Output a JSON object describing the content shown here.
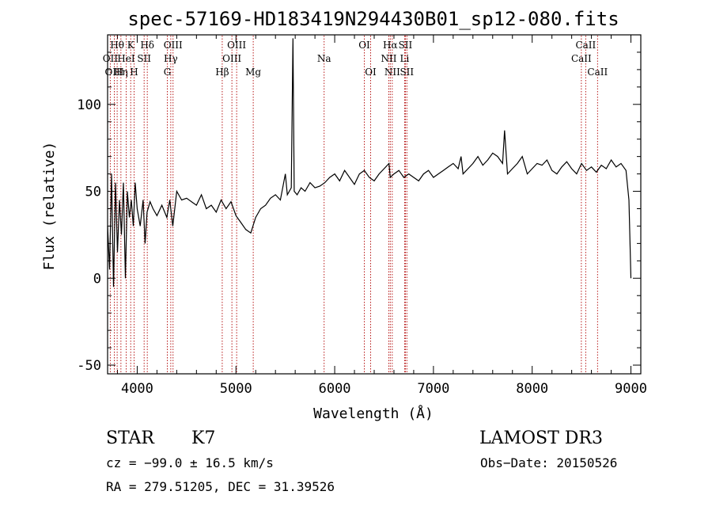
{
  "chart_data": {
    "type": "line",
    "title": "spec-57169-HD183419N294430B01_sp12-080.fits",
    "xlabel": "Wavelength (Å)",
    "ylabel": "Flux (relative)",
    "xlim": [
      3700,
      9100
    ],
    "ylim": [
      -55,
      140
    ],
    "xticks": [
      4000,
      5000,
      6000,
      7000,
      8000,
      9000
    ],
    "yticks": [
      -50,
      0,
      50,
      100
    ],
    "series": [
      {
        "name": "flux",
        "x": [
          3700,
          3720,
          3740,
          3760,
          3780,
          3800,
          3820,
          3840,
          3860,
          3880,
          3900,
          3920,
          3940,
          3960,
          3980,
          4000,
          4030,
          4060,
          4080,
          4100,
          4130,
          4160,
          4200,
          4250,
          4300,
          4330,
          4360,
          4400,
          4450,
          4500,
          4550,
          4600,
          4650,
          4700,
          4750,
          4800,
          4850,
          4900,
          4950,
          5000,
          5050,
          5100,
          5150,
          5200,
          5250,
          5300,
          5350,
          5400,
          5450,
          5500,
          5520,
          5540,
          5560,
          5577,
          5590,
          5620,
          5660,
          5700,
          5750,
          5800,
          5850,
          5900,
          5950,
          6000,
          6050,
          6100,
          6150,
          6200,
          6250,
          6300,
          6350,
          6400,
          6450,
          6500,
          6550,
          6563,
          6600,
          6650,
          6700,
          6750,
          6800,
          6850,
          6900,
          6950,
          7000,
          7050,
          7100,
          7150,
          7200,
          7250,
          7280,
          7300,
          7350,
          7400,
          7450,
          7500,
          7550,
          7600,
          7650,
          7700,
          7720,
          7750,
          7800,
          7850,
          7900,
          7950,
          8000,
          8050,
          8100,
          8150,
          8200,
          8250,
          8300,
          8350,
          8400,
          8450,
          8500,
          8550,
          8600,
          8650,
          8700,
          8750,
          8800,
          8850,
          8900,
          8950,
          8980,
          9000
        ],
        "values": [
          30,
          5,
          60,
          -5,
          55,
          15,
          45,
          25,
          55,
          0,
          50,
          35,
          45,
          30,
          55,
          40,
          30,
          45,
          20,
          38,
          44,
          40,
          36,
          42,
          35,
          45,
          30,
          50,
          45,
          46,
          44,
          42,
          48,
          40,
          42,
          38,
          45,
          40,
          44,
          36,
          32,
          28,
          26,
          35,
          40,
          42,
          46,
          48,
          45,
          60,
          48,
          50,
          52,
          138,
          50,
          48,
          52,
          50,
          55,
          52,
          53,
          55,
          58,
          60,
          56,
          62,
          58,
          54,
          60,
          62,
          58,
          56,
          60,
          63,
          66,
          58,
          60,
          62,
          58,
          60,
          58,
          56,
          60,
          62,
          58,
          60,
          62,
          64,
          66,
          63,
          70,
          60,
          63,
          66,
          70,
          65,
          68,
          72,
          70,
          66,
          85,
          60,
          63,
          66,
          70,
          60,
          63,
          66,
          65,
          68,
          62,
          60,
          64,
          67,
          63,
          60,
          66,
          62,
          64,
          61,
          65,
          63,
          68,
          64,
          66,
          62,
          45,
          0
        ]
      }
    ],
    "lines": [
      {
        "name": "Hθ",
        "wavelength": 3797
      },
      {
        "name": "OII",
        "wavelength": 3727
      },
      {
        "name": "OIII",
        "wavelength": 3768
      },
      {
        "name": "K",
        "wavelength": 3934
      },
      {
        "name": "HeI",
        "wavelength": 3888
      },
      {
        "name": "Hη",
        "wavelength": 3835
      },
      {
        "name": "SII",
        "wavelength": 4070
      },
      {
        "name": "H",
        "wavelength": 3968
      },
      {
        "name": "Hδ",
        "wavelength": 4102
      },
      {
        "name": "OIII",
        "wavelength": 4363
      },
      {
        "name": "Hγ",
        "wavelength": 4340
      },
      {
        "name": "G",
        "wavelength": 4305
      },
      {
        "name": "Hβ",
        "wavelength": 4861
      },
      {
        "name": "OIII",
        "wavelength": 4959
      },
      {
        "name": "OIII",
        "wavelength": 5007
      },
      {
        "name": "Mg",
        "wavelength": 5175
      },
      {
        "name": "Na",
        "wavelength": 5893
      },
      {
        "name": "OI",
        "wavelength": 6300
      },
      {
        "name": "OI",
        "wavelength": 6364
      },
      {
        "name": "Hα",
        "wavelength": 6563
      },
      {
        "name": "NII",
        "wavelength": 6548
      },
      {
        "name": "NII",
        "wavelength": 6583
      },
      {
        "name": "SII",
        "wavelength": 6716
      },
      {
        "name": "Li",
        "wavelength": 6708
      },
      {
        "name": "SII",
        "wavelength": 6731
      },
      {
        "name": "CaII",
        "wavelength": 8542
      },
      {
        "name": "CaII",
        "wavelength": 8498
      },
      {
        "name": "CaII",
        "wavelength": 8662
      }
    ],
    "line_labels": [
      {
        "text": "Hθ",
        "wavelength": 3797,
        "row": 1
      },
      {
        "text": "K",
        "wavelength": 3934,
        "row": 1
      },
      {
        "text": "Hδ",
        "wavelength": 4102,
        "row": 1
      },
      {
        "text": "OIII",
        "wavelength": 4363,
        "row": 1
      },
      {
        "text": "OIII",
        "wavelength": 5007,
        "row": 1
      },
      {
        "text": "OI",
        "wavelength": 6300,
        "row": 1
      },
      {
        "text": "Hα",
        "wavelength": 6563,
        "row": 1
      },
      {
        "text": "SII",
        "wavelength": 6716,
        "row": 1
      },
      {
        "text": "CaII",
        "wavelength": 8542,
        "row": 1
      },
      {
        "text": "OII",
        "wavelength": 3727,
        "row": 2
      },
      {
        "text": "HeI",
        "wavelength": 3888,
        "row": 2
      },
      {
        "text": "SII",
        "wavelength": 4070,
        "row": 2
      },
      {
        "text": "Hγ",
        "wavelength": 4340,
        "row": 2
      },
      {
        "text": "OIII",
        "wavelength": 4959,
        "row": 2
      },
      {
        "text": "Na",
        "wavelength": 5893,
        "row": 2
      },
      {
        "text": "NII",
        "wavelength": 6548,
        "row": 2
      },
      {
        "text": "Li",
        "wavelength": 6708,
        "row": 2
      },
      {
        "text": "CaII",
        "wavelength": 8498,
        "row": 2
      },
      {
        "text": "OIII",
        "wavelength": 3768,
        "row": 3
      },
      {
        "text": "Hη",
        "wavelength": 3835,
        "row": 3
      },
      {
        "text": "H",
        "wavelength": 3968,
        "row": 3
      },
      {
        "text": "G",
        "wavelength": 4305,
        "row": 3
      },
      {
        "text": "Hβ",
        "wavelength": 4861,
        "row": 3
      },
      {
        "text": "Mg",
        "wavelength": 5175,
        "row": 3
      },
      {
        "text": "OI",
        "wavelength": 6364,
        "row": 3
      },
      {
        "text": "NII",
        "wavelength": 6583,
        "row": 3
      },
      {
        "text": "SII",
        "wavelength": 6731,
        "row": 3
      },
      {
        "text": "CaII",
        "wavelength": 8662,
        "row": 3
      }
    ],
    "line_color": "#b00000"
  },
  "info": {
    "object_class": "STAR",
    "subclass": "K7",
    "survey": "LAMOST DR3",
    "cz": "cz = −99.0 ± 16.5 km/s",
    "obs_date": "Obs−Date: 20150526",
    "coords": "RA = 279.51205, DEC =  31.39526"
  }
}
